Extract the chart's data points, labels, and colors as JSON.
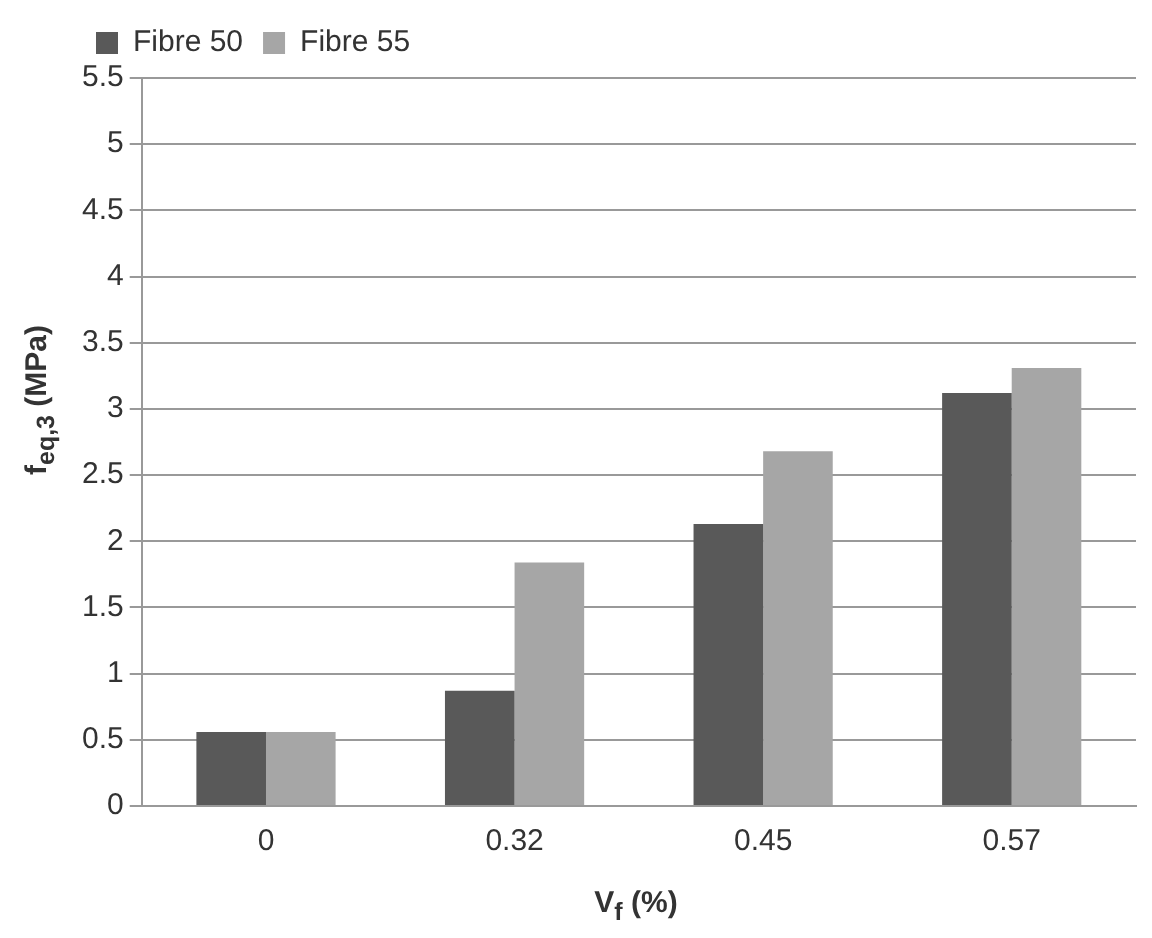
{
  "chart_data": {
    "type": "bar",
    "xlabel": "V$_{f}$ (%)",
    "ylabel": "f$_{eq,3}$ (MPa)",
    "categories": [
      "0",
      "0.32",
      "0.45",
      "0.57"
    ],
    "series": [
      {
        "name": "Fibre 50",
        "color": "#595959",
        "values": [
          0.56,
          0.87,
          2.13,
          3.12
        ]
      },
      {
        "name": "Fibre 55",
        "color": "#a6a6a6",
        "values": [
          0.56,
          1.84,
          2.68,
          3.31
        ]
      }
    ],
    "ylim": [
      0,
      5.5
    ],
    "yticks": [
      0,
      0.5,
      1,
      1.5,
      2,
      2.5,
      3,
      3.5,
      4,
      4.5,
      5,
      5.5
    ],
    "grid": "y",
    "legend": "top left"
  }
}
